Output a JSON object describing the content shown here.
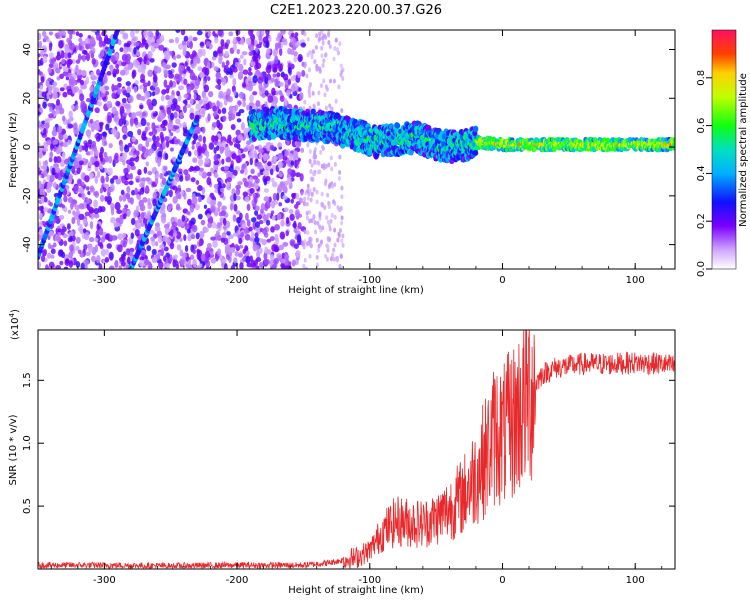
{
  "figure": {
    "title": "C2E1.2023.220.00.37.G26"
  },
  "chart_data": [
    {
      "type": "heatmap",
      "xlabel": "Height of straight line (km)",
      "ylabel": "Frequency (Hz)",
      "xlim": [
        -350,
        130
      ],
      "ylim": [
        -50,
        48
      ],
      "x_ticks": [
        "-300",
        "-200",
        "-100",
        "0",
        "100"
      ],
      "y_ticks": [
        "-40",
        "-20",
        "0",
        "20",
        "40"
      ],
      "x_tick_values": [
        -300,
        -200,
        -100,
        0,
        100
      ],
      "y_tick_values": [
        -40,
        -20,
        0,
        20,
        40
      ],
      "colorbar": {
        "label": "Normalized spectral amplitude",
        "range": [
          0,
          1
        ],
        "ticks": [
          "0.0",
          "0.2",
          "0.4",
          "0.6",
          "0.8"
        ],
        "tick_values": [
          0.0,
          0.2,
          0.4,
          0.6,
          0.8
        ]
      },
      "features": {
        "noise_region_x": [
          -350,
          -150
        ],
        "sparse_noise_x": [
          -150,
          -120
        ],
        "ridge": [
          [
            -190,
            9
          ],
          [
            -170,
            10
          ],
          [
            -150,
            9
          ],
          [
            -130,
            8
          ],
          [
            -110,
            5
          ],
          [
            -95,
            2
          ],
          [
            -80,
            3
          ],
          [
            -65,
            4
          ],
          [
            -50,
            1
          ],
          [
            -35,
            0
          ],
          [
            -20,
            2
          ],
          [
            0,
            1
          ],
          [
            30,
            1
          ],
          [
            60,
            1
          ],
          [
            100,
            1
          ],
          [
            130,
            1
          ]
        ],
        "diagonal_streaks": [
          {
            "from": [
              -350,
              -45
            ],
            "to": [
              -290,
              48
            ]
          },
          {
            "from": [
              -280,
              -50
            ],
            "to": [
              -230,
              12
            ]
          }
        ]
      },
      "grid": false
    },
    {
      "type": "line",
      "multiplier_label": "(x10",
      "multiplier_exp": "4",
      "xlabel": "Height of straight line (km)",
      "ylabel": "SNR (10 * v/v)",
      "xlim": [
        -350,
        130
      ],
      "ylim": [
        0,
        19000
      ],
      "x_ticks": [
        "-300",
        "-200",
        "-100",
        "0",
        "100"
      ],
      "y_ticks": [
        "0.5",
        "1.0",
        "1.5"
      ],
      "x_tick_values": [
        -300,
        -200,
        -100,
        0,
        100
      ],
      "y_tick_values": [
        5000,
        10000,
        15000
      ],
      "color": "#e8282a",
      "series": [
        {
          "x": [
            -350,
            -300,
            -250,
            -200,
            -150,
            -130,
            -120,
            -110,
            -100,
            -90,
            -80,
            -70,
            -60,
            -50,
            -40,
            -30,
            -20,
            -10,
            -5,
            0,
            10,
            20,
            30,
            40,
            60,
            80,
            100,
            120,
            130
          ],
          "y": [
            300,
            300,
            250,
            300,
            300,
            500,
            700,
            900,
            1500,
            3000,
            3800,
            3700,
            3600,
            4000,
            4800,
            5800,
            7500,
            9500,
            11000,
            10500,
            12000,
            14000,
            15500,
            16000,
            16300,
            16300,
            16400,
            16300,
            16100
          ]
        }
      ],
      "grid": false
    }
  ]
}
